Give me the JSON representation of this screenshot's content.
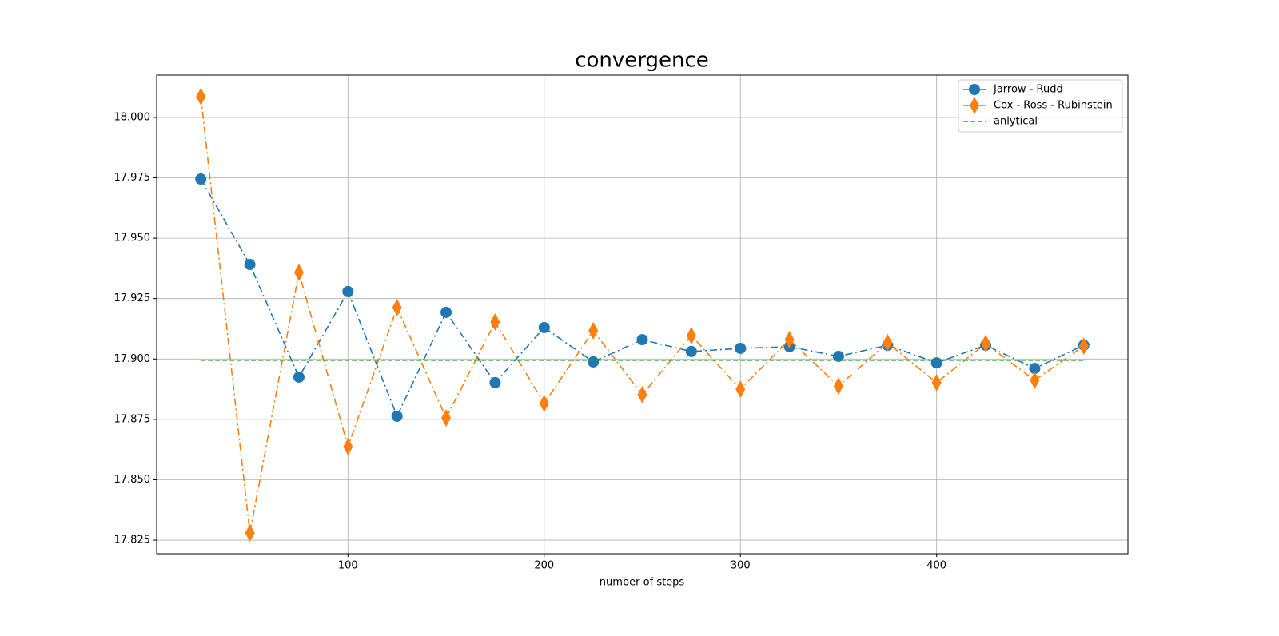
{
  "chart_data": {
    "type": "line",
    "title": "convergence",
    "xlabel": "number of steps",
    "x": [
      25,
      50,
      75,
      100,
      125,
      150,
      175,
      200,
      225,
      250,
      275,
      300,
      325,
      350,
      375,
      400,
      425,
      450,
      475
    ],
    "series": [
      {
        "name": "Jarrow - Rudd",
        "color": "#1f77b4",
        "marker": "circle",
        "linestyle": "dashdot",
        "values": [
          17.9745,
          17.9391,
          17.8925,
          17.9279,
          17.8763,
          17.9193,
          17.8902,
          17.913,
          17.8988,
          17.908,
          17.9031,
          17.9044,
          17.9051,
          17.9011,
          17.9057,
          17.8984,
          17.9057,
          17.8961,
          17.9057
        ]
      },
      {
        "name": "Cox - Ross - Rubinstein",
        "color": "#ff7f0e",
        "marker": "thin_diamond",
        "linestyle": "dashdot",
        "values": [
          18.0086,
          17.828,
          17.9358,
          17.8637,
          17.9213,
          17.8756,
          17.9153,
          17.8816,
          17.9117,
          17.8852,
          17.9097,
          17.8875,
          17.908,
          17.8888,
          17.9067,
          17.8902,
          17.9064,
          17.8912,
          17.9054
        ]
      },
      {
        "name": "anlytical",
        "color": "#2ca02c",
        "marker": "none",
        "linestyle": "dashed",
        "values": [
          17.8995,
          17.8995,
          17.8995,
          17.8995,
          17.8995,
          17.8995,
          17.8995,
          17.8995,
          17.8995,
          17.8995,
          17.8995,
          17.8995,
          17.8995,
          17.8995,
          17.8995,
          17.8995,
          17.8995,
          17.8995,
          17.8995
        ]
      }
    ],
    "xlim": [
      2.5,
      497.5
    ],
    "xticks": [
      100,
      200,
      300,
      400
    ],
    "ylim": [
      17.8194,
      18.0175
    ],
    "yticks": [
      {
        "value": 17.825,
        "label": "17.825"
      },
      {
        "value": 17.85,
        "label": "17.850"
      },
      {
        "value": 17.875,
        "label": "17.875"
      },
      {
        "value": 17.9,
        "label": "17.900"
      },
      {
        "value": 17.925,
        "label": "17.925"
      },
      {
        "value": 17.95,
        "label": "17.950"
      },
      {
        "value": 17.975,
        "label": "17.975"
      },
      {
        "value": 18,
        "label": "18.000"
      }
    ],
    "grid": true,
    "legend": "upper right"
  }
}
